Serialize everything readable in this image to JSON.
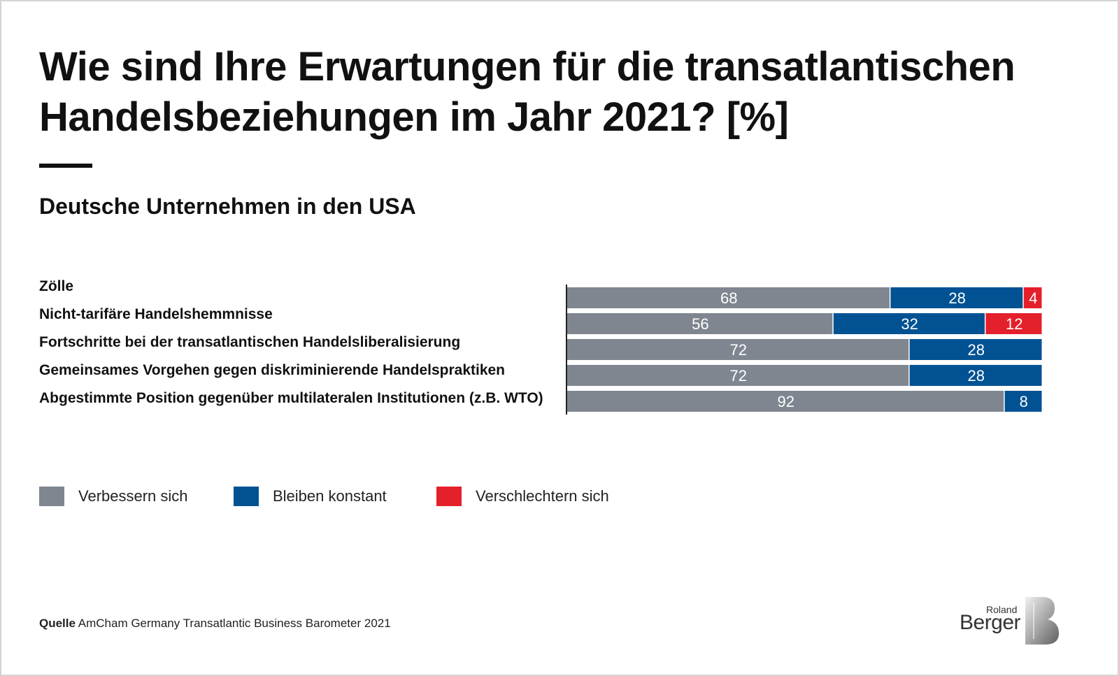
{
  "title": "Wie sind Ihre Erwartungen für die transatlantischen Handelsbeziehungen im Jahr 2021? [%]",
  "subtitle": "Deutsche Unternehmen in den USA",
  "chart_data": {
    "type": "bar",
    "orientation": "horizontal",
    "stacked": true,
    "categories": [
      "Zölle",
      "Nicht-tarifäre Handelshemmnisse",
      "Fortschritte bei der transatlantischen Handelsliberalisierung",
      "Gemeinsames Vorgehen gegen diskriminierende Handelspraktiken",
      "Abgestimmte Position gegenüber multilateralen Institutionen (z.B. WTO)"
    ],
    "series": [
      {
        "name": "Verbessern sich",
        "color": "#7f868f",
        "values": [
          68,
          56,
          72,
          72,
          92
        ]
      },
      {
        "name": "Bleiben konstant",
        "color": "#005293",
        "values": [
          28,
          32,
          28,
          28,
          8
        ]
      },
      {
        "name": "Verschlechtern sich",
        "color": "#e4202b",
        "values": [
          4,
          12,
          0,
          0,
          0
        ]
      }
    ],
    "xlim": [
      0,
      100
    ],
    "grid": false,
    "legend_position": "bottom-left",
    "data_labels": true
  },
  "source": {
    "label": "Quelle",
    "text": "AmCham Germany Transatlantic Business Barometer 2021"
  },
  "logo": {
    "line1": "Roland",
    "line2": "Berger"
  }
}
